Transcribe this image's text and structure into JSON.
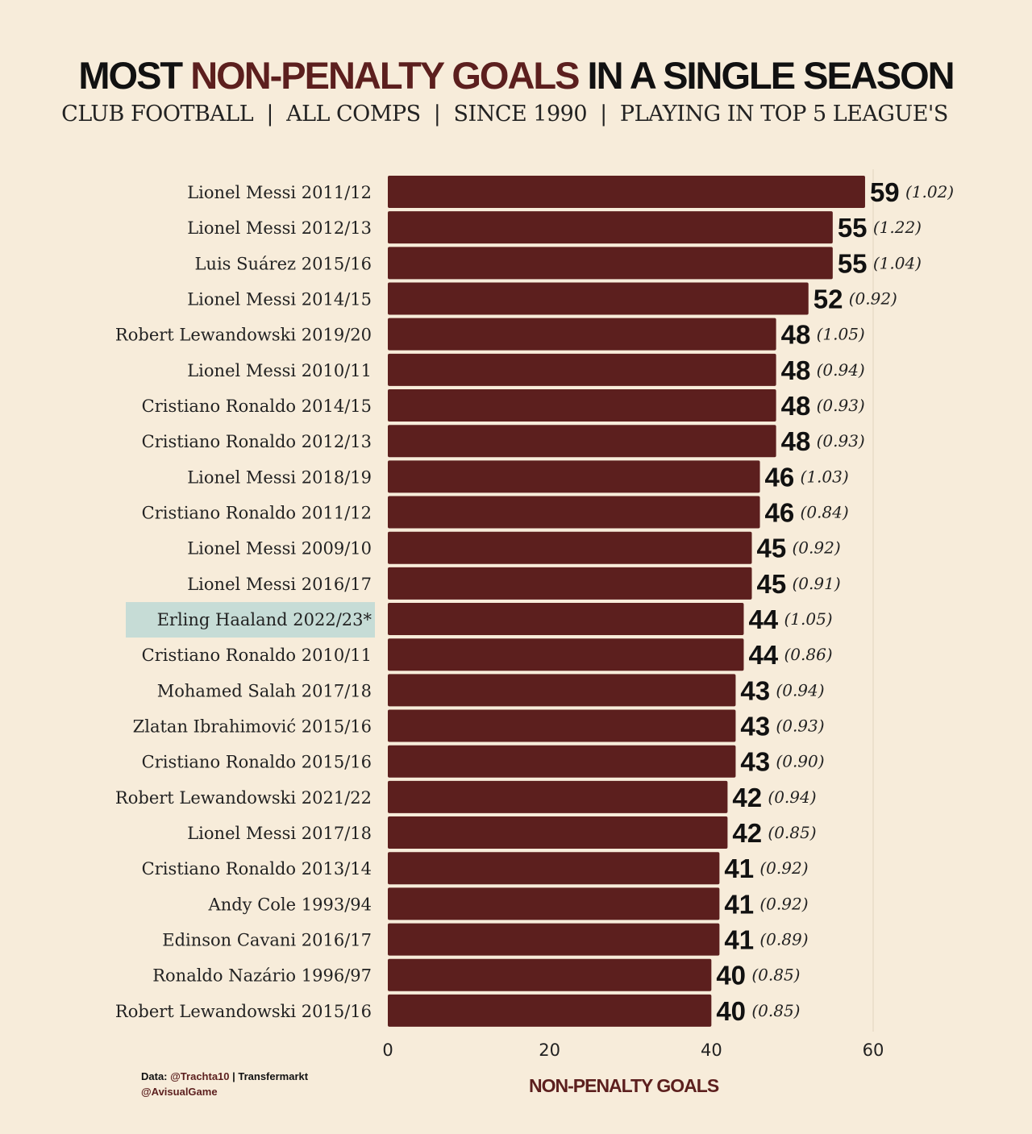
{
  "title": {
    "part1": "MOST ",
    "highlight": "NON-PENALTY GOALS",
    "part2": " IN A SINGLE SEASON"
  },
  "subtitle": "CLUB FOOTBALL  |  ALL COMPS  |  SINCE 1990  |  PLAYING IN TOP 5 LEAGUE'S",
  "footer": {
    "data_prefix": "Data: ",
    "source1": "@Trachta10",
    "separator": " | Transfermarkt",
    "handle": "@AvisualGame"
  },
  "colors": {
    "bar": "#5c1f1e",
    "background": "#f7ecda",
    "highlight_label": "#c6dcd6"
  },
  "chart_data": {
    "type": "bar",
    "orientation": "horizontal",
    "xlabel": "NON-PENALTY GOALS",
    "xlim": [
      0,
      60
    ],
    "xticks": [
      0,
      20,
      40,
      60
    ],
    "grid": false,
    "highlighted": "Erling Haaland 2022/23*",
    "categories": [
      "Lionel Messi 2011/12",
      "Lionel Messi 2012/13",
      "Luis Suárez 2015/16",
      "Lionel Messi 2014/15",
      "Robert Lewandowski 2019/20",
      "Lionel Messi 2010/11",
      "Cristiano Ronaldo 2014/15",
      "Cristiano Ronaldo 2012/13",
      "Lionel Messi 2018/19",
      "Cristiano Ronaldo 2011/12",
      "Lionel Messi 2009/10",
      "Lionel Messi 2016/17",
      "Erling Haaland 2022/23*",
      "Cristiano Ronaldo 2010/11",
      "Mohamed Salah 2017/18",
      "Zlatan Ibrahimović 2015/16",
      "Cristiano Ronaldo 2015/16",
      "Robert Lewandowski 2021/22",
      "Lionel Messi 2017/18",
      "Cristiano Ronaldo 2013/14",
      "Andy Cole 1993/94",
      "Edinson Cavani 2016/17",
      "Ronaldo Nazário 1996/97",
      "Robert Lewandowski 2015/16"
    ],
    "values": [
      59,
      55,
      55,
      52,
      48,
      48,
      48,
      48,
      46,
      46,
      45,
      45,
      44,
      44,
      43,
      43,
      43,
      42,
      42,
      41,
      41,
      41,
      40,
      40
    ],
    "per_game": [
      "(1.02)",
      "(1.22)",
      "(1.04)",
      "(0.92)",
      "(1.05)",
      "(0.94)",
      "(0.93)",
      "(0.93)",
      "(1.03)",
      "(0.84)",
      "(0.92)",
      "(0.91)",
      "(1.05)",
      "(0.86)",
      "(0.94)",
      "(0.93)",
      "(0.90)",
      "(0.94)",
      "(0.85)",
      "(0.92)",
      "(0.92)",
      "(0.89)",
      "(0.85)",
      "(0.85)"
    ]
  }
}
